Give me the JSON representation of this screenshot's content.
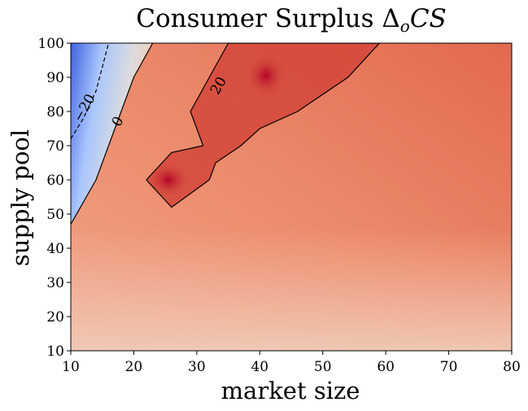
{
  "chart_data": {
    "type": "heatmap",
    "title_main": "Consumer Surplus ",
    "title_math": "Δ",
    "title_sub": "o",
    "title_tail": "CS",
    "xlabel": "market size",
    "ylabel": "supply pool",
    "xlim": [
      10,
      80
    ],
    "ylim": [
      10,
      100
    ],
    "xticks": [
      10,
      20,
      30,
      40,
      50,
      60,
      70,
      80
    ],
    "yticks": [
      10,
      20,
      30,
      40,
      50,
      60,
      70,
      80,
      90,
      100
    ],
    "colormap": "coolwarm",
    "contour_levels": [
      {
        "level": -20,
        "label": "−20",
        "style": "dashed",
        "points": [
          [
            10,
            72
          ],
          [
            12,
            78
          ],
          [
            14,
            86
          ],
          [
            16,
            100
          ]
        ]
      },
      {
        "level": 0,
        "label": "0",
        "style": "solid",
        "points": [
          [
            10,
            47
          ],
          [
            14,
            60
          ],
          [
            17,
            75
          ],
          [
            20,
            90
          ],
          [
            23,
            100
          ]
        ]
      },
      {
        "level": 20,
        "label": "20",
        "style": "solid",
        "points": [
          [
            22,
            60
          ],
          [
            26,
            52
          ],
          [
            32,
            60
          ],
          [
            33,
            65
          ],
          [
            37,
            70
          ],
          [
            40,
            75
          ],
          [
            46,
            80
          ],
          [
            54,
            90
          ],
          [
            59,
            100
          ],
          [
            35,
            100
          ],
          [
            32,
            90
          ],
          [
            29,
            80
          ],
          [
            31,
            70
          ],
          [
            26,
            68
          ],
          [
            22,
            60
          ]
        ]
      }
    ],
    "contour_label_positions": [
      {
        "label": "−20",
        "x": 12.2,
        "y": 81
      },
      {
        "label": "0",
        "x": 17.5,
        "y": 77
      },
      {
        "label": "20",
        "x": 33.5,
        "y": 87.5
      }
    ]
  }
}
